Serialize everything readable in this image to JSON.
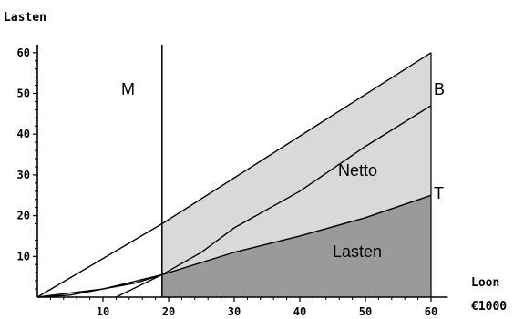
{
  "chart_data": {
    "type": "area",
    "xlabel": "Loon",
    "xunit": "€1000",
    "ylabel": "Lasten",
    "xlim": [
      0,
      62
    ],
    "ylim": [
      0,
      62
    ],
    "xticks": [
      10,
      20,
      30,
      40,
      50,
      60
    ],
    "yticks": [
      10,
      20,
      30,
      40,
      50,
      60
    ],
    "xticklabels": [
      "10",
      "20",
      "30",
      "40",
      "50",
      "60"
    ],
    "yticklabels": [
      "10",
      "20",
      "30",
      "40",
      "50",
      "60"
    ],
    "vertical_line": {
      "x": 19,
      "label": "M"
    },
    "series": [
      {
        "name": "B",
        "x": [
          0,
          19,
          60
        ],
        "y": [
          0,
          18,
          60
        ]
      },
      {
        "name": "",
        "x": [
          0,
          10,
          19,
          25,
          30,
          40,
          50,
          60
        ],
        "y": [
          0,
          2,
          5.5,
          11,
          17,
          26,
          37,
          47
        ]
      },
      {
        "name": "T",
        "x": [
          0,
          5,
          10,
          15,
          19,
          25,
          30,
          40,
          50,
          60
        ],
        "y": [
          0,
          0.5,
          2,
          3.5,
          5.5,
          8.5,
          11,
          15,
          19.5,
          25
        ]
      },
      {
        "name": "",
        "x": [
          12,
          19
        ],
        "y": [
          0,
          5.5
        ]
      }
    ],
    "regions": [
      {
        "label": "Netto",
        "color": "#d9d9d9"
      },
      {
        "label": "Lasten",
        "color": "#9a9a9a"
      }
    ],
    "grid": false
  }
}
